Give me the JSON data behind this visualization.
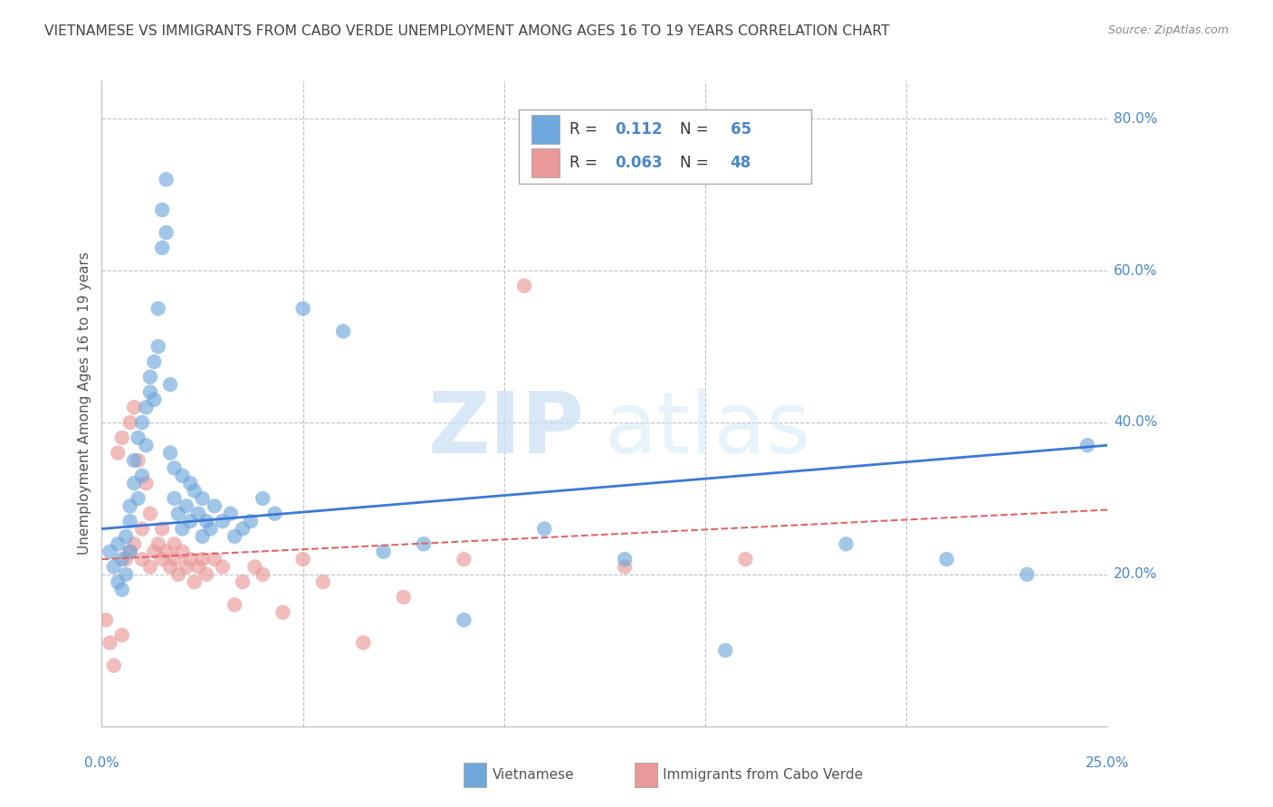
{
  "title": "VIETNAMESE VS IMMIGRANTS FROM CABO VERDE UNEMPLOYMENT AMONG AGES 16 TO 19 YEARS CORRELATION CHART",
  "source": "Source: ZipAtlas.com",
  "ylabel": "Unemployment Among Ages 16 to 19 years",
  "xlim": [
    0,
    0.25
  ],
  "ylim": [
    0,
    0.85
  ],
  "xticks": [
    0.0,
    0.05,
    0.1,
    0.15,
    0.2,
    0.25
  ],
  "yticks": [
    0.0,
    0.2,
    0.4,
    0.6,
    0.8
  ],
  "xticklabels": [
    "0.0%",
    "",
    "",
    "",
    "",
    "25.0%"
  ],
  "yticklabels": [
    "",
    "20.0%",
    "40.0%",
    "60.0%",
    "80.0%"
  ],
  "blue_R": "0.112",
  "blue_N": "65",
  "pink_R": "0.063",
  "pink_N": "48",
  "blue_color": "#6fa8dc",
  "pink_color": "#ea9999",
  "blue_line_color": "#3c78d8",
  "pink_line_color": "#e06666",
  "watermark_zip": "ZIP",
  "watermark_atlas": "atlas",
  "legend_labels": [
    "Vietnamese",
    "Immigrants from Cabo Verde"
  ],
  "blue_scatter_x": [
    0.002,
    0.003,
    0.004,
    0.004,
    0.005,
    0.005,
    0.006,
    0.006,
    0.007,
    0.007,
    0.007,
    0.008,
    0.008,
    0.009,
    0.009,
    0.01,
    0.01,
    0.011,
    0.011,
    0.012,
    0.012,
    0.013,
    0.013,
    0.014,
    0.014,
    0.015,
    0.015,
    0.016,
    0.016,
    0.017,
    0.017,
    0.018,
    0.018,
    0.019,
    0.02,
    0.02,
    0.021,
    0.022,
    0.022,
    0.023,
    0.024,
    0.025,
    0.025,
    0.026,
    0.027,
    0.028,
    0.03,
    0.032,
    0.033,
    0.035,
    0.037,
    0.04,
    0.043,
    0.05,
    0.06,
    0.07,
    0.08,
    0.09,
    0.11,
    0.13,
    0.155,
    0.185,
    0.21,
    0.23,
    0.245
  ],
  "blue_scatter_y": [
    0.23,
    0.21,
    0.19,
    0.24,
    0.22,
    0.18,
    0.2,
    0.25,
    0.23,
    0.27,
    0.29,
    0.32,
    0.35,
    0.3,
    0.38,
    0.33,
    0.4,
    0.37,
    0.42,
    0.44,
    0.46,
    0.48,
    0.43,
    0.5,
    0.55,
    0.63,
    0.68,
    0.65,
    0.72,
    0.45,
    0.36,
    0.34,
    0.3,
    0.28,
    0.33,
    0.26,
    0.29,
    0.32,
    0.27,
    0.31,
    0.28,
    0.25,
    0.3,
    0.27,
    0.26,
    0.29,
    0.27,
    0.28,
    0.25,
    0.26,
    0.27,
    0.3,
    0.28,
    0.55,
    0.52,
    0.23,
    0.24,
    0.14,
    0.26,
    0.22,
    0.1,
    0.24,
    0.22,
    0.2,
    0.37
  ],
  "pink_scatter_x": [
    0.001,
    0.002,
    0.003,
    0.004,
    0.005,
    0.005,
    0.006,
    0.007,
    0.007,
    0.008,
    0.008,
    0.009,
    0.01,
    0.01,
    0.011,
    0.012,
    0.012,
    0.013,
    0.014,
    0.015,
    0.015,
    0.016,
    0.017,
    0.018,
    0.018,
    0.019,
    0.02,
    0.021,
    0.022,
    0.023,
    0.024,
    0.025,
    0.026,
    0.028,
    0.03,
    0.033,
    0.035,
    0.038,
    0.04,
    0.045,
    0.05,
    0.055,
    0.065,
    0.075,
    0.09,
    0.105,
    0.13,
    0.16
  ],
  "pink_scatter_y": [
    0.14,
    0.11,
    0.08,
    0.36,
    0.38,
    0.12,
    0.22,
    0.4,
    0.23,
    0.42,
    0.24,
    0.35,
    0.26,
    0.22,
    0.32,
    0.28,
    0.21,
    0.23,
    0.24,
    0.22,
    0.26,
    0.23,
    0.21,
    0.24,
    0.22,
    0.2,
    0.23,
    0.21,
    0.22,
    0.19,
    0.21,
    0.22,
    0.2,
    0.22,
    0.21,
    0.16,
    0.19,
    0.21,
    0.2,
    0.15,
    0.22,
    0.19,
    0.11,
    0.17,
    0.22,
    0.58,
    0.21,
    0.22
  ],
  "blue_trend_x": [
    0.0,
    0.25
  ],
  "blue_trend_y": [
    0.26,
    0.37
  ],
  "pink_trend_x": [
    0.0,
    0.25
  ],
  "pink_trend_y": [
    0.22,
    0.285
  ],
  "grid_color": "#c0c0c0",
  "title_color": "#434343",
  "tick_color": "#4a86c8"
}
